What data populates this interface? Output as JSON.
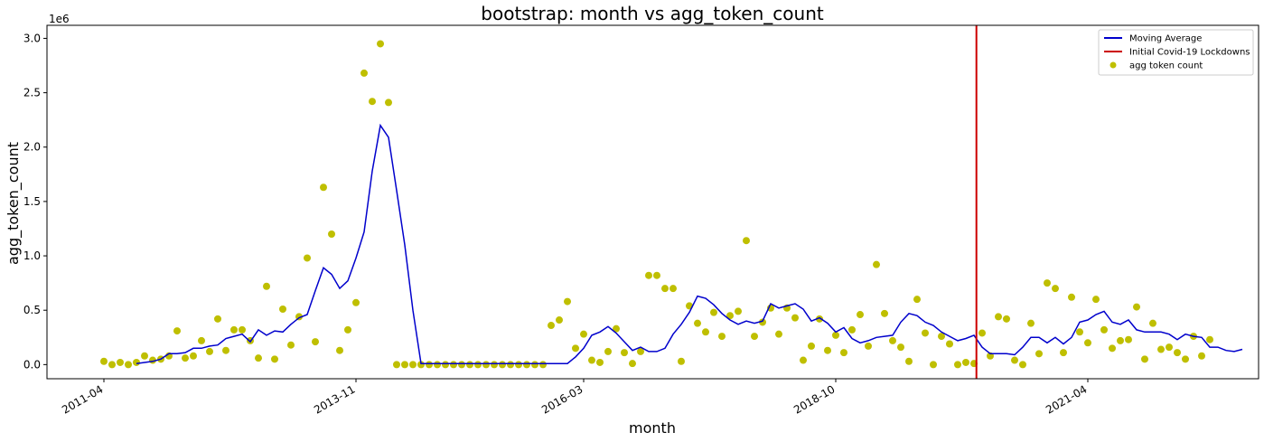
{
  "chart_data": {
    "type": "line",
    "title": "bootstrap: month vs agg_token_count",
    "xlabel": "month",
    "ylabel": "agg_token_count",
    "y_multiplier_label": "1e6",
    "y_ticks": [
      "0.0",
      "0.5",
      "1.0",
      "1.5",
      "2.0",
      "2.5",
      "3.0"
    ],
    "ylim": [
      -0.13,
      3.12
    ],
    "x_ticks": [
      "2011-04",
      "2013-11",
      "2016-03",
      "2018-10",
      "2021-04"
    ],
    "x_tick_index": [
      0,
      31,
      59,
      90,
      121
    ],
    "xlim_index": [
      -7,
      142
    ],
    "grid": false,
    "legend_position": "top-right",
    "colors": {
      "moving_average": "#0000cc",
      "covid_line": "#cc0000",
      "scatter": "#bfbf00"
    },
    "series": [
      {
        "name": "Moving Average",
        "kind": "line",
        "start_index": 4,
        "values": [
          0.01,
          0.02,
          0.03,
          0.05,
          0.1,
          0.1,
          0.11,
          0.15,
          0.15,
          0.17,
          0.18,
          0.24,
          0.26,
          0.28,
          0.21,
          0.32,
          0.27,
          0.31,
          0.3,
          0.37,
          0.43,
          0.46,
          0.68,
          0.89,
          0.83,
          0.7,
          0.77,
          0.98,
          1.22,
          1.78,
          2.2,
          2.09,
          1.6,
          1.1,
          0.5,
          0.01,
          0.01,
          0.01,
          0.01,
          0.01,
          0.01,
          0.01,
          0.01,
          0.01,
          0.01,
          0.01,
          0.01,
          0.01,
          0.01,
          0.01,
          0.01,
          0.01,
          0.01,
          0.01,
          0.07,
          0.15,
          0.27,
          0.3,
          0.35,
          0.29,
          0.21,
          0.13,
          0.16,
          0.12,
          0.12,
          0.15,
          0.28,
          0.37,
          0.48,
          0.63,
          0.61,
          0.55,
          0.47,
          0.41,
          0.37,
          0.4,
          0.38,
          0.4,
          0.56,
          0.52,
          0.54,
          0.56,
          0.51,
          0.4,
          0.43,
          0.38,
          0.3,
          0.34,
          0.24,
          0.2,
          0.22,
          0.25,
          0.26,
          0.27,
          0.39,
          0.47,
          0.45,
          0.39,
          0.36,
          0.3,
          0.26,
          0.22,
          0.24,
          0.27,
          0.16,
          0.1,
          0.1,
          0.1,
          0.09,
          0.16,
          0.25,
          0.25,
          0.2,
          0.25,
          0.19,
          0.25,
          0.39,
          0.41,
          0.46,
          0.49,
          0.39,
          0.37,
          0.41,
          0.32,
          0.3,
          0.3,
          0.3,
          0.28,
          0.23,
          0.28,
          0.26,
          0.25,
          0.16,
          0.16,
          0.13,
          0.12,
          0.14
        ]
      },
      {
        "name": "Initial Covid-19 Lockdowns",
        "kind": "vline",
        "x_index": 107.3
      },
      {
        "name": "agg token count",
        "kind": "scatter",
        "start_index": 0,
        "values": [
          0.03,
          0.0,
          0.02,
          0.0,
          0.02,
          0.08,
          0.04,
          0.05,
          0.08,
          0.31,
          0.06,
          0.08,
          0.22,
          0.12,
          0.42,
          0.13,
          0.32,
          0.32,
          0.22,
          0.06,
          0.72,
          0.05,
          0.51,
          0.18,
          0.44,
          0.98,
          0.21,
          1.63,
          1.2,
          0.13,
          0.32,
          0.57,
          2.68,
          2.42,
          2.95,
          2.41,
          0.0,
          0.0,
          0.0,
          0.0,
          0.0,
          0.0,
          0.0,
          0.0,
          0.0,
          0.0,
          0.0,
          0.0,
          0.0,
          0.0,
          0.0,
          0.0,
          0.0,
          0.0,
          0.0,
          0.36,
          0.41,
          0.58,
          0.15,
          0.28,
          0.04,
          0.02,
          0.12,
          0.33,
          0.11,
          0.01,
          0.12,
          0.82,
          0.82,
          0.7,
          0.7,
          0.03,
          0.54,
          0.38,
          0.3,
          0.48,
          0.26,
          0.45,
          0.49,
          1.14,
          0.26,
          0.39,
          0.52,
          0.28,
          0.52,
          0.43,
          0.04,
          0.17,
          0.42,
          0.13,
          0.27,
          0.11,
          0.32,
          0.46,
          0.17,
          0.92,
          0.47,
          0.22,
          0.16,
          0.03,
          0.6,
          0.29,
          0.0,
          0.26,
          0.19,
          0.0,
          0.02,
          0.01,
          0.29,
          0.08,
          0.44,
          0.42,
          0.04,
          0.0,
          0.38,
          0.1,
          0.75,
          0.7,
          0.11,
          0.62,
          0.3,
          0.2,
          0.6,
          0.32,
          0.15,
          0.22,
          0.23,
          0.53,
          0.05,
          0.38,
          0.14,
          0.16,
          0.11,
          0.05,
          0.26,
          0.08,
          0.23
        ]
      }
    ]
  }
}
